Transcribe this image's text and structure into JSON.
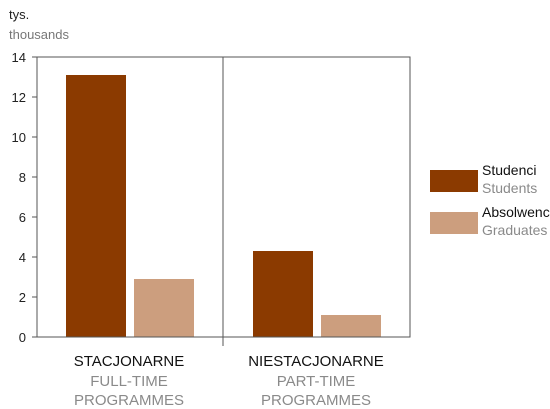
{
  "chart_data": {
    "type": "bar",
    "title": "",
    "unit_label": "tys.",
    "unit_label_en": "thousands",
    "ylim": [
      0,
      14
    ],
    "yticks": [
      0,
      2,
      4,
      6,
      8,
      10,
      12,
      14
    ],
    "grid": false,
    "legend_position": "right",
    "categories": [
      {
        "label": "STACJONARNE",
        "label_en_line1": "FULL-TIME",
        "label_en_line2": "PROGRAMMES"
      },
      {
        "label": "NIESTACJONARNE",
        "label_en_line1": "PART-TIME",
        "label_en_line2": "PROGRAMMES"
      }
    ],
    "series": [
      {
        "name": "Studenci",
        "name_en": "Students",
        "color": "#8b3a00",
        "values": [
          13.1,
          4.3
        ]
      },
      {
        "name": "Absolwenci",
        "name_en": "Graduates",
        "color": "#cc9e7e",
        "values": [
          2.9,
          1.1
        ]
      }
    ]
  }
}
